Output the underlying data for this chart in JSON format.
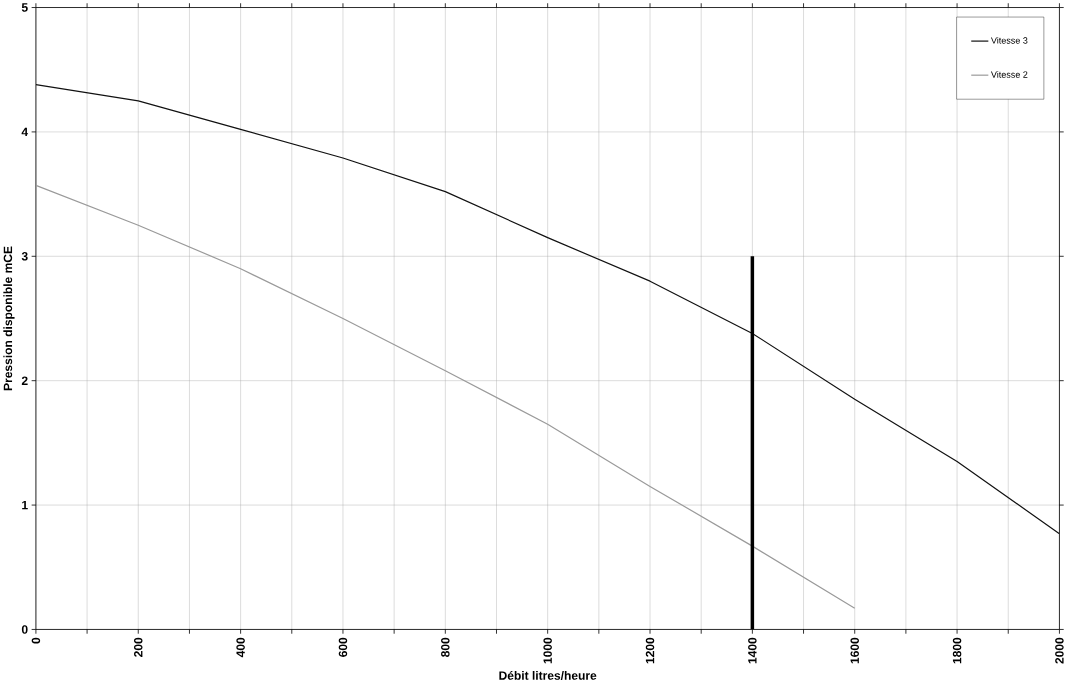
{
  "chart_data": {
    "type": "line",
    "xlabel": "Débit litres/heure",
    "ylabel": "Pression disponible mCE",
    "xlim": [
      0,
      2000
    ],
    "ylim": [
      0,
      5
    ],
    "xticks": [
      0,
      {
        "value": 100,
        "label": null
      },
      200,
      {
        "value": 300,
        "label": null
      },
      400,
      {
        "value": 500,
        "label": null
      },
      600,
      {
        "value": 700,
        "label": null
      },
      800,
      {
        "value": 900,
        "label": null
      },
      1000,
      {
        "value": 1100,
        "label": null
      },
      1200,
      {
        "value": 1300,
        "label": null
      },
      1400,
      {
        "value": 1500,
        "label": null
      },
      1600,
      {
        "value": 1700,
        "label": null
      },
      1800,
      {
        "value": 1900,
        "label": null
      },
      2000
    ],
    "yticks": [
      0,
      1,
      2,
      3,
      4,
      5
    ],
    "grid": true,
    "legend": "top right",
    "marker": "none",
    "series": [
      {
        "name": "Vitesse 3",
        "color": "#111111",
        "x": [
          0,
          200,
          400,
          600,
          800,
          1000,
          1200,
          1400,
          1600,
          1800,
          2000
        ],
        "values": [
          4.38,
          4.25,
          4.02,
          3.79,
          3.52,
          3.15,
          2.8,
          2.38,
          1.85,
          1.35,
          0.77
        ]
      },
      {
        "name": "Vitesse 2",
        "color": "#9a9a9a",
        "x": [
          0,
          200,
          400,
          600,
          800,
          1000,
          1200,
          1400,
          1600
        ],
        "values": [
          3.57,
          3.25,
          2.9,
          2.5,
          2.08,
          1.65,
          1.15,
          0.67,
          0.17
        ]
      },
      {
        "color": "#000000",
        "x": [
          1400,
          1400
        ],
        "values": [
          0,
          3
        ]
      }
    ]
  }
}
